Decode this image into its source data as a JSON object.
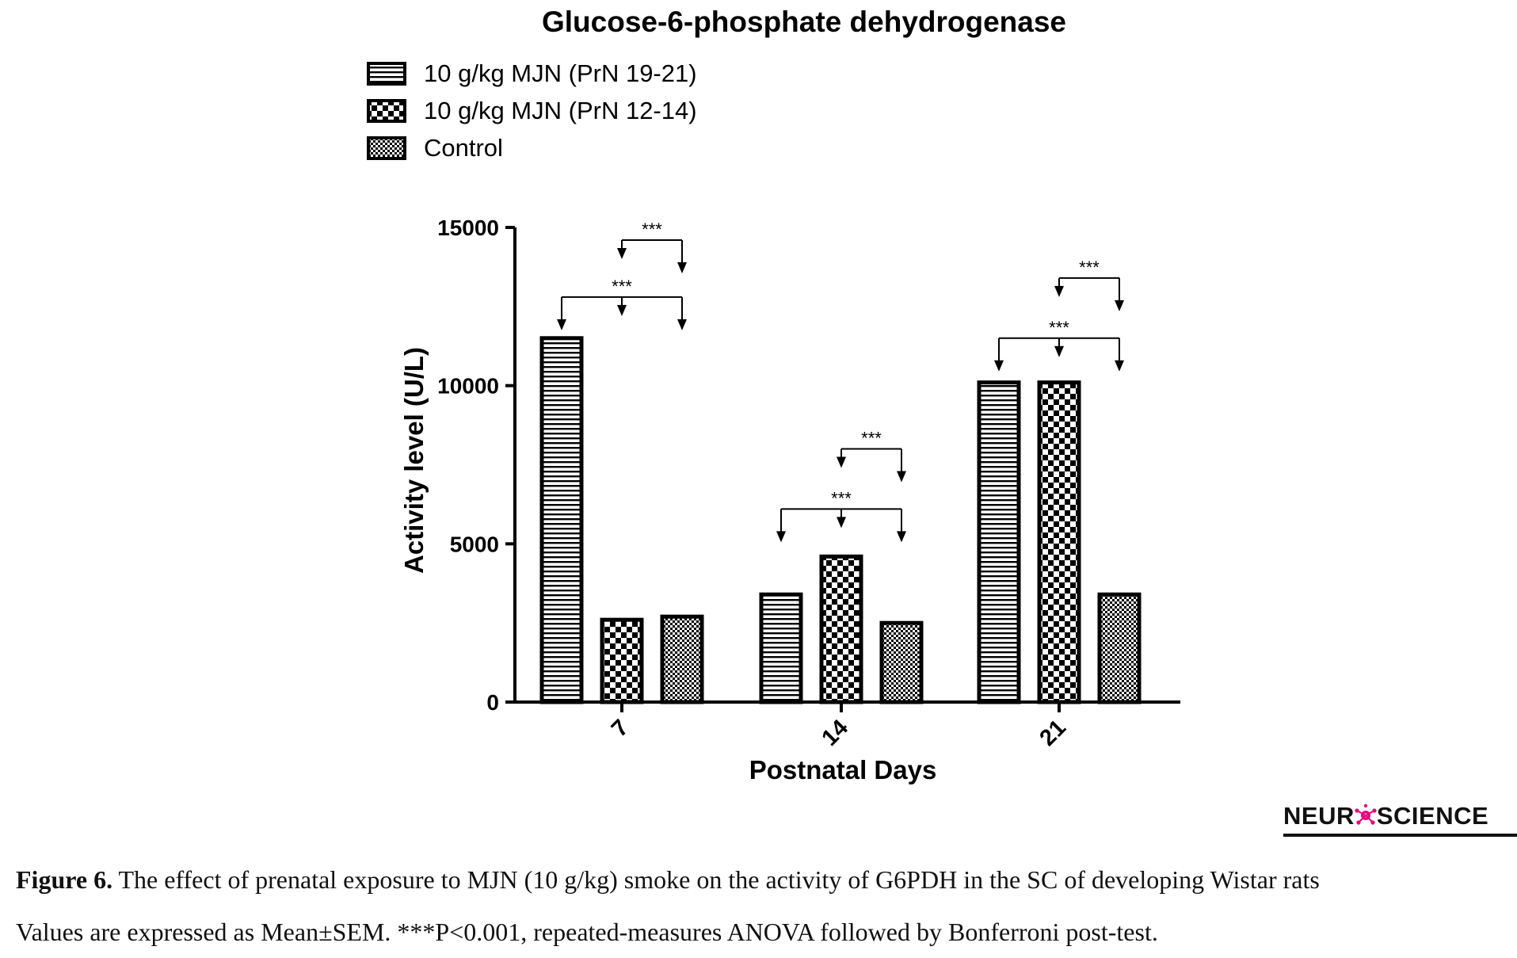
{
  "chart_data": {
    "type": "bar",
    "title": "Glucose-6-phosphate dehydrogenase",
    "xlabel": "Postnatal Days",
    "ylabel": "Activity level (U/L)",
    "categories": [
      "7",
      "14",
      "21"
    ],
    "ylim": [
      0,
      15000
    ],
    "yticks": [
      0,
      5000,
      10000,
      15000
    ],
    "grid": false,
    "legend_position": "top-left",
    "series": [
      {
        "name": "10 g/kg MJN (PrN 19-21)",
        "pattern": "horizontal-stripes",
        "values": [
          11500,
          3400,
          10100
        ]
      },
      {
        "name": "10 g/kg MJN (PrN 12-14)",
        "pattern": "checkerboard",
        "values": [
          2600,
          4600,
          10100
        ]
      },
      {
        "name": "Control",
        "pattern": "fine-checker",
        "values": [
          2700,
          2500,
          3400
        ]
      }
    ],
    "annotations": [
      {
        "category": "7",
        "label": "***",
        "from_series": 1,
        "to_series": [
          2
        ],
        "level": 14600
      },
      {
        "category": "7",
        "label": "***",
        "from_series": 0,
        "to_series": [
          1,
          2
        ],
        "level": 12800
      },
      {
        "category": "14",
        "label": "***",
        "from_series": 1,
        "to_series": [
          2
        ],
        "level": 8000
      },
      {
        "category": "14",
        "label": "***",
        "from_series": 0,
        "to_series": [
          1,
          2
        ],
        "level": 6100
      },
      {
        "category": "21",
        "label": "***",
        "from_series": 1,
        "to_series": [
          2
        ],
        "level": 13400
      },
      {
        "category": "21",
        "label": "***",
        "from_series": 0,
        "to_series": [
          1,
          2
        ],
        "level": 11500
      }
    ]
  },
  "branding": {
    "text_left": "NEUR",
    "text_right": "SCIENCE",
    "logo_icon": "neuron-icon",
    "logo_color": "#e6007e"
  },
  "caption": {
    "label": "Figure 6.",
    "line1": " The effect of prenatal exposure to MJN (10 g/kg) smoke on the activity of G6PDH in the SC of developing Wistar rats",
    "line2": "Values are expressed as Mean±SEM. ***P<0.001, repeated-measures ANOVA followed by Bonferroni post-test."
  }
}
